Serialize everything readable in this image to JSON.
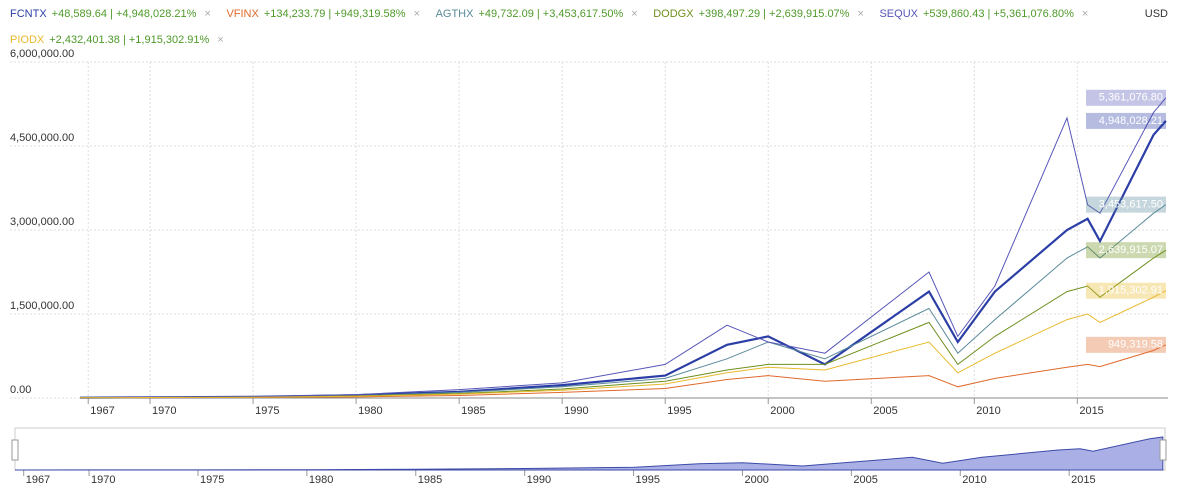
{
  "chart_data": {
    "type": "line",
    "currency": "USD",
    "x": [
      1966.6,
      1970,
      1975,
      1980,
      1985,
      1990,
      1995,
      1998,
      2000,
      2002.75,
      2007.8,
      2009.2,
      2011,
      2014.5,
      2015.5,
      2016.1,
      2018.7,
      2019.3
    ],
    "series": [
      {
        "name": "FCNTX",
        "stats": "+48,589.64 | +4,948,028.21%",
        "end_label": "4,948,028.21",
        "color": "#2b3ea6",
        "values": [
          5000,
          12000,
          20000,
          50000,
          110000,
          230000,
          400000,
          950000,
          1100000,
          600000,
          1900000,
          1000000,
          1900000,
          3000000,
          3200000,
          2800000,
          4700000,
          4948028.21
        ]
      },
      {
        "name": "VFINX",
        "stats": "+134,233.79 | +949,319.58%",
        "end_label": "949,319.58",
        "color": "#e0692b",
        "values": [
          3000,
          6000,
          10000,
          20000,
          45000,
          100000,
          170000,
          330000,
          400000,
          300000,
          400000,
          200000,
          350000,
          550000,
          600000,
          560000,
          850000,
          949319.58
        ]
      },
      {
        "name": "AGTHX",
        "stats": "+49,732.09 | +3,453,617.50%",
        "end_label": "3,453,617.50",
        "color": "#5a8a9a",
        "values": [
          5000,
          10000,
          18000,
          40000,
          100000,
          200000,
          350000,
          700000,
          1000000,
          700000,
          1600000,
          800000,
          1400000,
          2500000,
          2700000,
          2500000,
          3300000,
          3453617.5
        ]
      },
      {
        "name": "DODGX",
        "stats": "+398,497.29 | +2,639,915.07%",
        "end_label": "2,639,915.07",
        "color": "#6e8f1e",
        "values": [
          5000,
          9000,
          16000,
          35000,
          80000,
          160000,
          300000,
          500000,
          600000,
          600000,
          1350000,
          600000,
          1100000,
          1900000,
          2000000,
          1800000,
          2500000,
          2639915.07
        ]
      },
      {
        "name": "SEQUX",
        "stats": "+539,860.43 | +5,361,076.80%",
        "end_label": "5,361,076.80",
        "color": "#5656b8",
        "values": [
          5000,
          15000,
          25000,
          60000,
          150000,
          270000,
          600000,
          1300000,
          1000000,
          800000,
          2250000,
          1100000,
          2000000,
          5000000,
          3450000,
          3300000,
          5100000,
          5361076.8
        ]
      },
      {
        "name": "PIODX",
        "stats": "+2,432,401.38 | +1,915,302.91%",
        "end_label": "1,915,302.91",
        "color": "#e8b92c",
        "values": [
          5000,
          9000,
          15000,
          30000,
          70000,
          140000,
          250000,
          450000,
          550000,
          500000,
          1000000,
          450000,
          800000,
          1400000,
          1500000,
          1350000,
          1800000,
          1915302.91
        ]
      }
    ],
    "xlim": [
      1966.6,
      2019.4
    ],
    "xticks": [
      1967,
      1970,
      1975,
      1980,
      1985,
      1990,
      1995,
      2000,
      2005,
      2010,
      2015
    ],
    "ylim": [
      0,
      6000000
    ],
    "yticks": [
      {
        "value": 0,
        "label": "0.00"
      },
      {
        "value": 1500000,
        "label": "1,500,000.00"
      },
      {
        "value": 3000000,
        "label": "3,000,000.00"
      },
      {
        "value": 4500000,
        "label": "4,500,000.00"
      },
      {
        "value": 6000000,
        "label": "6,000,000.00"
      }
    ],
    "grid": true
  }
}
